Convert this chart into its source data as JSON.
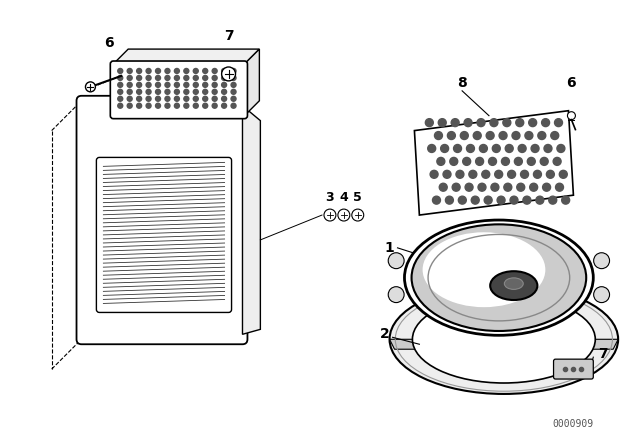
{
  "background_color": "#ffffff",
  "part_number_text": "0000909",
  "fig_width": 6.4,
  "fig_height": 4.48,
  "dpi": 100,
  "line_color": "#000000",
  "gray_fill": "#f8f8f8",
  "dark_gray": "#404040",
  "mid_gray": "#888888",
  "light_gray": "#d8d8d8"
}
